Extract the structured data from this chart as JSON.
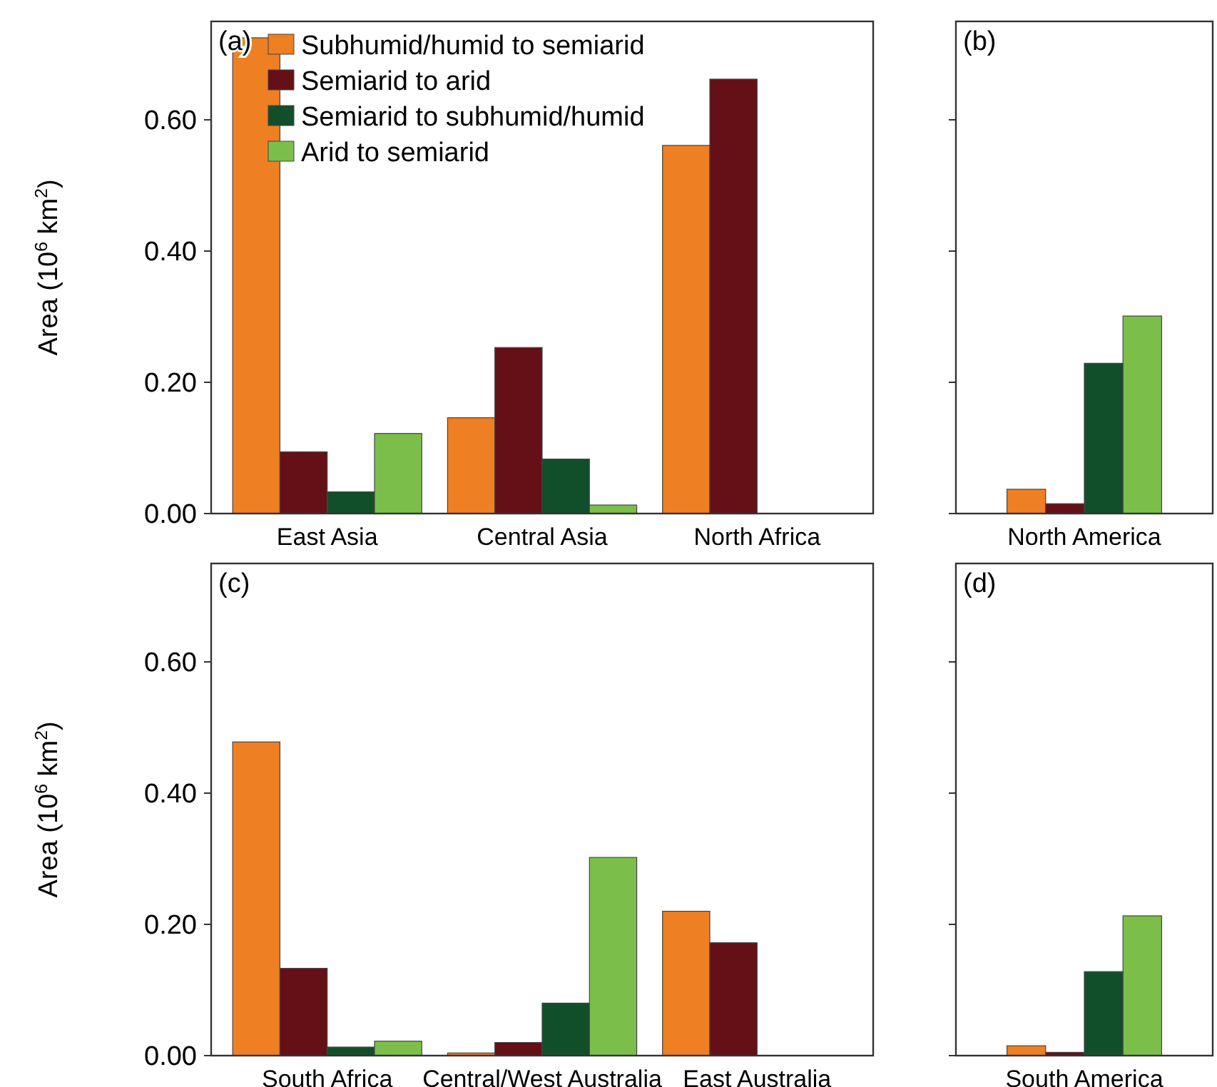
{
  "chart_data": [
    {
      "type": "bar",
      "title": "(a)",
      "ylabel": "Area (10$^{6}$ km$^{2}$)",
      "categories": [
        "East Asia",
        "Central Asia",
        "North Africa"
      ],
      "ylim": [
        0,
        0.75
      ],
      "yticks": [
        {
          "value": 0,
          "label": "0.00"
        },
        {
          "value": 0.2,
          "label": "0.20"
        },
        {
          "value": 0.4,
          "label": "0.40"
        },
        {
          "value": 0.6,
          "label": "0.60"
        }
      ],
      "legend": "top left",
      "grid": false,
      "series": [
        {
          "name": "Subhumid/humid to semiarid",
          "color": "#ee7f22",
          "values": [
            0.725,
            0.146,
            0.561
          ]
        },
        {
          "name": "Semiarid to arid",
          "color": "#651016",
          "values": [
            0.094,
            0.253,
            0.662
          ]
        },
        {
          "name": "Semiarid to subhumid/humid",
          "color": "#114f2a",
          "values": [
            0.033,
            0.083,
            0
          ]
        },
        {
          "name": "Arid to semiarid",
          "color": "#7bbf4a",
          "values": [
            0.122,
            0.013,
            0
          ]
        }
      ]
    },
    {
      "type": "bar",
      "title": "(b)",
      "categories": [
        "North America"
      ],
      "ylim": [
        0,
        0.75
      ],
      "yticks": [
        {
          "value": 0,
          "label": null
        },
        {
          "value": 0.2,
          "label": null
        },
        {
          "value": 0.4,
          "label": null
        },
        {
          "value": 0.6,
          "label": null
        }
      ],
      "tick_labels": "x",
      "grid": false,
      "series": [
        {
          "color": "#ee7f22",
          "values": [
            0.037
          ]
        },
        {
          "color": "#651016",
          "values": [
            0.015
          ]
        },
        {
          "color": "#114f2a",
          "values": [
            0.229
          ]
        },
        {
          "color": "#7bbf4a",
          "values": [
            0.301
          ]
        }
      ]
    },
    {
      "type": "bar",
      "title": "(c)",
      "ylabel": "Area (10$^{6}$ km$^{2}$)",
      "categories": [
        "South Africa",
        "Central/West Australia",
        "East Australia"
      ],
      "ylim": [
        0,
        0.75
      ],
      "yticks": [
        {
          "value": 0,
          "label": "0.00"
        },
        {
          "value": 0.2,
          "label": "0.20"
        },
        {
          "value": 0.4,
          "label": "0.40"
        },
        {
          "value": 0.6,
          "label": "0.60"
        }
      ],
      "grid": false,
      "series": [
        {
          "color": "#ee7f22",
          "values": [
            0.478,
            0.004,
            0.22
          ]
        },
        {
          "color": "#651016",
          "values": [
            0.133,
            0.02,
            0.172
          ]
        },
        {
          "color": "#114f2a",
          "values": [
            0.013,
            0.08,
            0
          ]
        },
        {
          "color": "#7bbf4a",
          "values": [
            0.022,
            0.302,
            0
          ]
        }
      ]
    },
    {
      "type": "bar",
      "title": "(d)",
      "categories": [
        "South America"
      ],
      "ylim": [
        0,
        0.75
      ],
      "yticks": [
        {
          "value": 0,
          "label": null
        },
        {
          "value": 0.2,
          "label": null
        },
        {
          "value": 0.4,
          "label": null
        },
        {
          "value": 0.6,
          "label": null
        }
      ],
      "tick_labels": "x",
      "grid": false,
      "series": [
        {
          "color": "#ee7f22",
          "values": [
            0.015
          ]
        },
        {
          "color": "#651016",
          "values": [
            0.005
          ]
        },
        {
          "color": "#114f2a",
          "values": [
            0.128
          ]
        },
        {
          "color": "#7bbf4a",
          "values": [
            0.213
          ]
        }
      ]
    }
  ]
}
